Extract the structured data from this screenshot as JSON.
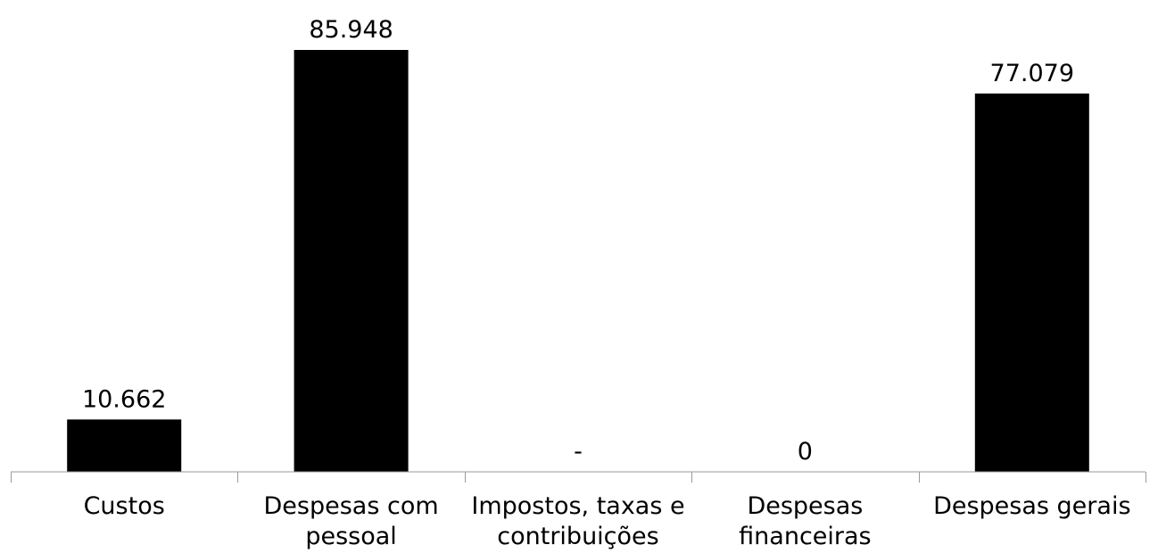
{
  "chart_data": {
    "type": "bar",
    "categories": [
      [
        "Custos"
      ],
      [
        "Despesas com",
        "pessoal"
      ],
      [
        "Impostos, taxas e",
        "contribuições"
      ],
      [
        "Despesas",
        "financeiras"
      ],
      [
        "Despesas gerais"
      ]
    ],
    "values": [
      10662,
      85948,
      0,
      0,
      77079
    ],
    "data_labels": [
      "10.662",
      "85.948",
      "-",
      "0",
      "77.079"
    ],
    "title": "",
    "xlabel": "",
    "ylabel": "",
    "ylim": [
      0,
      86000
    ],
    "grid": false,
    "legend": "none",
    "bar_color": "#000000",
    "axis_color": "#9a9a9a"
  }
}
